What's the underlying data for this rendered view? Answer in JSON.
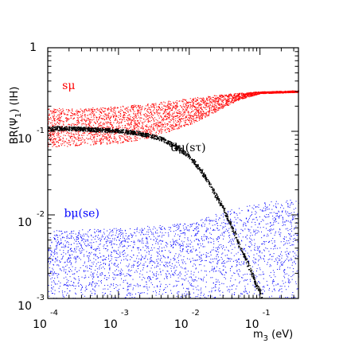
{
  "chart_data": {
    "type": "scatter",
    "title": "",
    "xlabel": "m₃ (eV)",
    "xlabel_main": "m",
    "xlabel_sub": "3",
    "xlabel_unit": " (eV)",
    "ylabel": "BR(Ψ₁) (IH)",
    "ylabel_main": "BR(Ψ",
    "ylabel_sub": "1",
    "ylabel_tail": ") (IH)",
    "x_scale": "log",
    "y_scale": "log",
    "xlim": [
      0.0001,
      0.35
    ],
    "ylim": [
      0.001,
      1
    ],
    "x_ticks": [
      {
        "base": "10",
        "exp": "-4",
        "value": 0.0001
      },
      {
        "base": "10",
        "exp": "-3",
        "value": 0.001
      },
      {
        "base": "10",
        "exp": "-2",
        "value": 0.01
      },
      {
        "base": "10",
        "exp": "-1",
        "value": 0.1
      }
    ],
    "y_ticks": [
      {
        "base": "1",
        "exp": "",
        "value": 1
      },
      {
        "base": "10",
        "exp": "-1",
        "value": 0.1
      },
      {
        "base": "10",
        "exp": "-2",
        "value": 0.01
      },
      {
        "base": "10",
        "exp": "-3",
        "value": 0.001
      }
    ],
    "grid": false,
    "legend": "none",
    "series": [
      {
        "name": "sμ",
        "color": "#ff0000",
        "style": "dense scattered band",
        "points": [
          [
            0.0001,
            0.13
          ],
          [
            0.0003,
            0.13
          ],
          [
            0.001,
            0.135
          ],
          [
            0.003,
            0.145
          ],
          [
            0.01,
            0.175
          ],
          [
            0.02,
            0.21
          ],
          [
            0.05,
            0.26
          ],
          [
            0.1,
            0.29
          ],
          [
            0.35,
            0.3
          ]
        ],
        "band_low": [
          [
            0.0001,
            0.065
          ],
          [
            0.0003,
            0.068
          ],
          [
            0.001,
            0.072
          ],
          [
            0.003,
            0.085
          ],
          [
            0.01,
            0.12
          ],
          [
            0.02,
            0.16
          ],
          [
            0.05,
            0.24
          ],
          [
            0.1,
            0.285
          ],
          [
            0.35,
            0.295
          ]
        ],
        "band_high": [
          [
            0.0001,
            0.19
          ],
          [
            0.0003,
            0.19
          ],
          [
            0.001,
            0.2
          ],
          [
            0.003,
            0.22
          ],
          [
            0.01,
            0.25
          ],
          [
            0.02,
            0.27
          ],
          [
            0.05,
            0.29
          ],
          [
            0.1,
            0.3
          ],
          [
            0.35,
            0.31
          ]
        ]
      },
      {
        "name": "dμ(sτ)",
        "color": "#000000",
        "style": "thin line of points",
        "points": [
          [
            0.0001,
            0.11
          ],
          [
            0.0003,
            0.108
          ],
          [
            0.001,
            0.102
          ],
          [
            0.002,
            0.095
          ],
          [
            0.004,
            0.082
          ],
          [
            0.007,
            0.064
          ],
          [
            0.01,
            0.05
          ],
          [
            0.015,
            0.033
          ],
          [
            0.02,
            0.022
          ],
          [
            0.03,
            0.012
          ],
          [
            0.04,
            0.0072
          ],
          [
            0.05,
            0.0045
          ],
          [
            0.06,
            0.0032
          ],
          [
            0.07,
            0.0024
          ],
          [
            0.08,
            0.0018
          ],
          [
            0.09,
            0.0014
          ],
          [
            0.1,
            0.0012
          ],
          [
            0.105,
            0.001
          ]
        ]
      },
      {
        "name": "bμ(se)",
        "color": "#0000ff",
        "style": "sparse scattered cloud",
        "band_low": [
          [
            0.0001,
            0.001
          ],
          [
            0.35,
            0.001
          ]
        ],
        "band_high": [
          [
            0.0001,
            0.0065
          ],
          [
            0.001,
            0.007
          ],
          [
            0.01,
            0.008
          ],
          [
            0.03,
            0.011
          ],
          [
            0.1,
            0.014
          ],
          [
            0.35,
            0.016
          ]
        ]
      }
    ],
    "annotations": [
      {
        "text": "sμ",
        "x": 0.00016,
        "y": 0.32,
        "color": "#ff0000"
      },
      {
        "text": "dμ(sτ)",
        "x": 0.0055,
        "y": 0.058,
        "color": "#000000"
      },
      {
        "text": "bμ(se)",
        "x": 0.00017,
        "y": 0.0095,
        "color": "#0000ff"
      }
    ]
  }
}
